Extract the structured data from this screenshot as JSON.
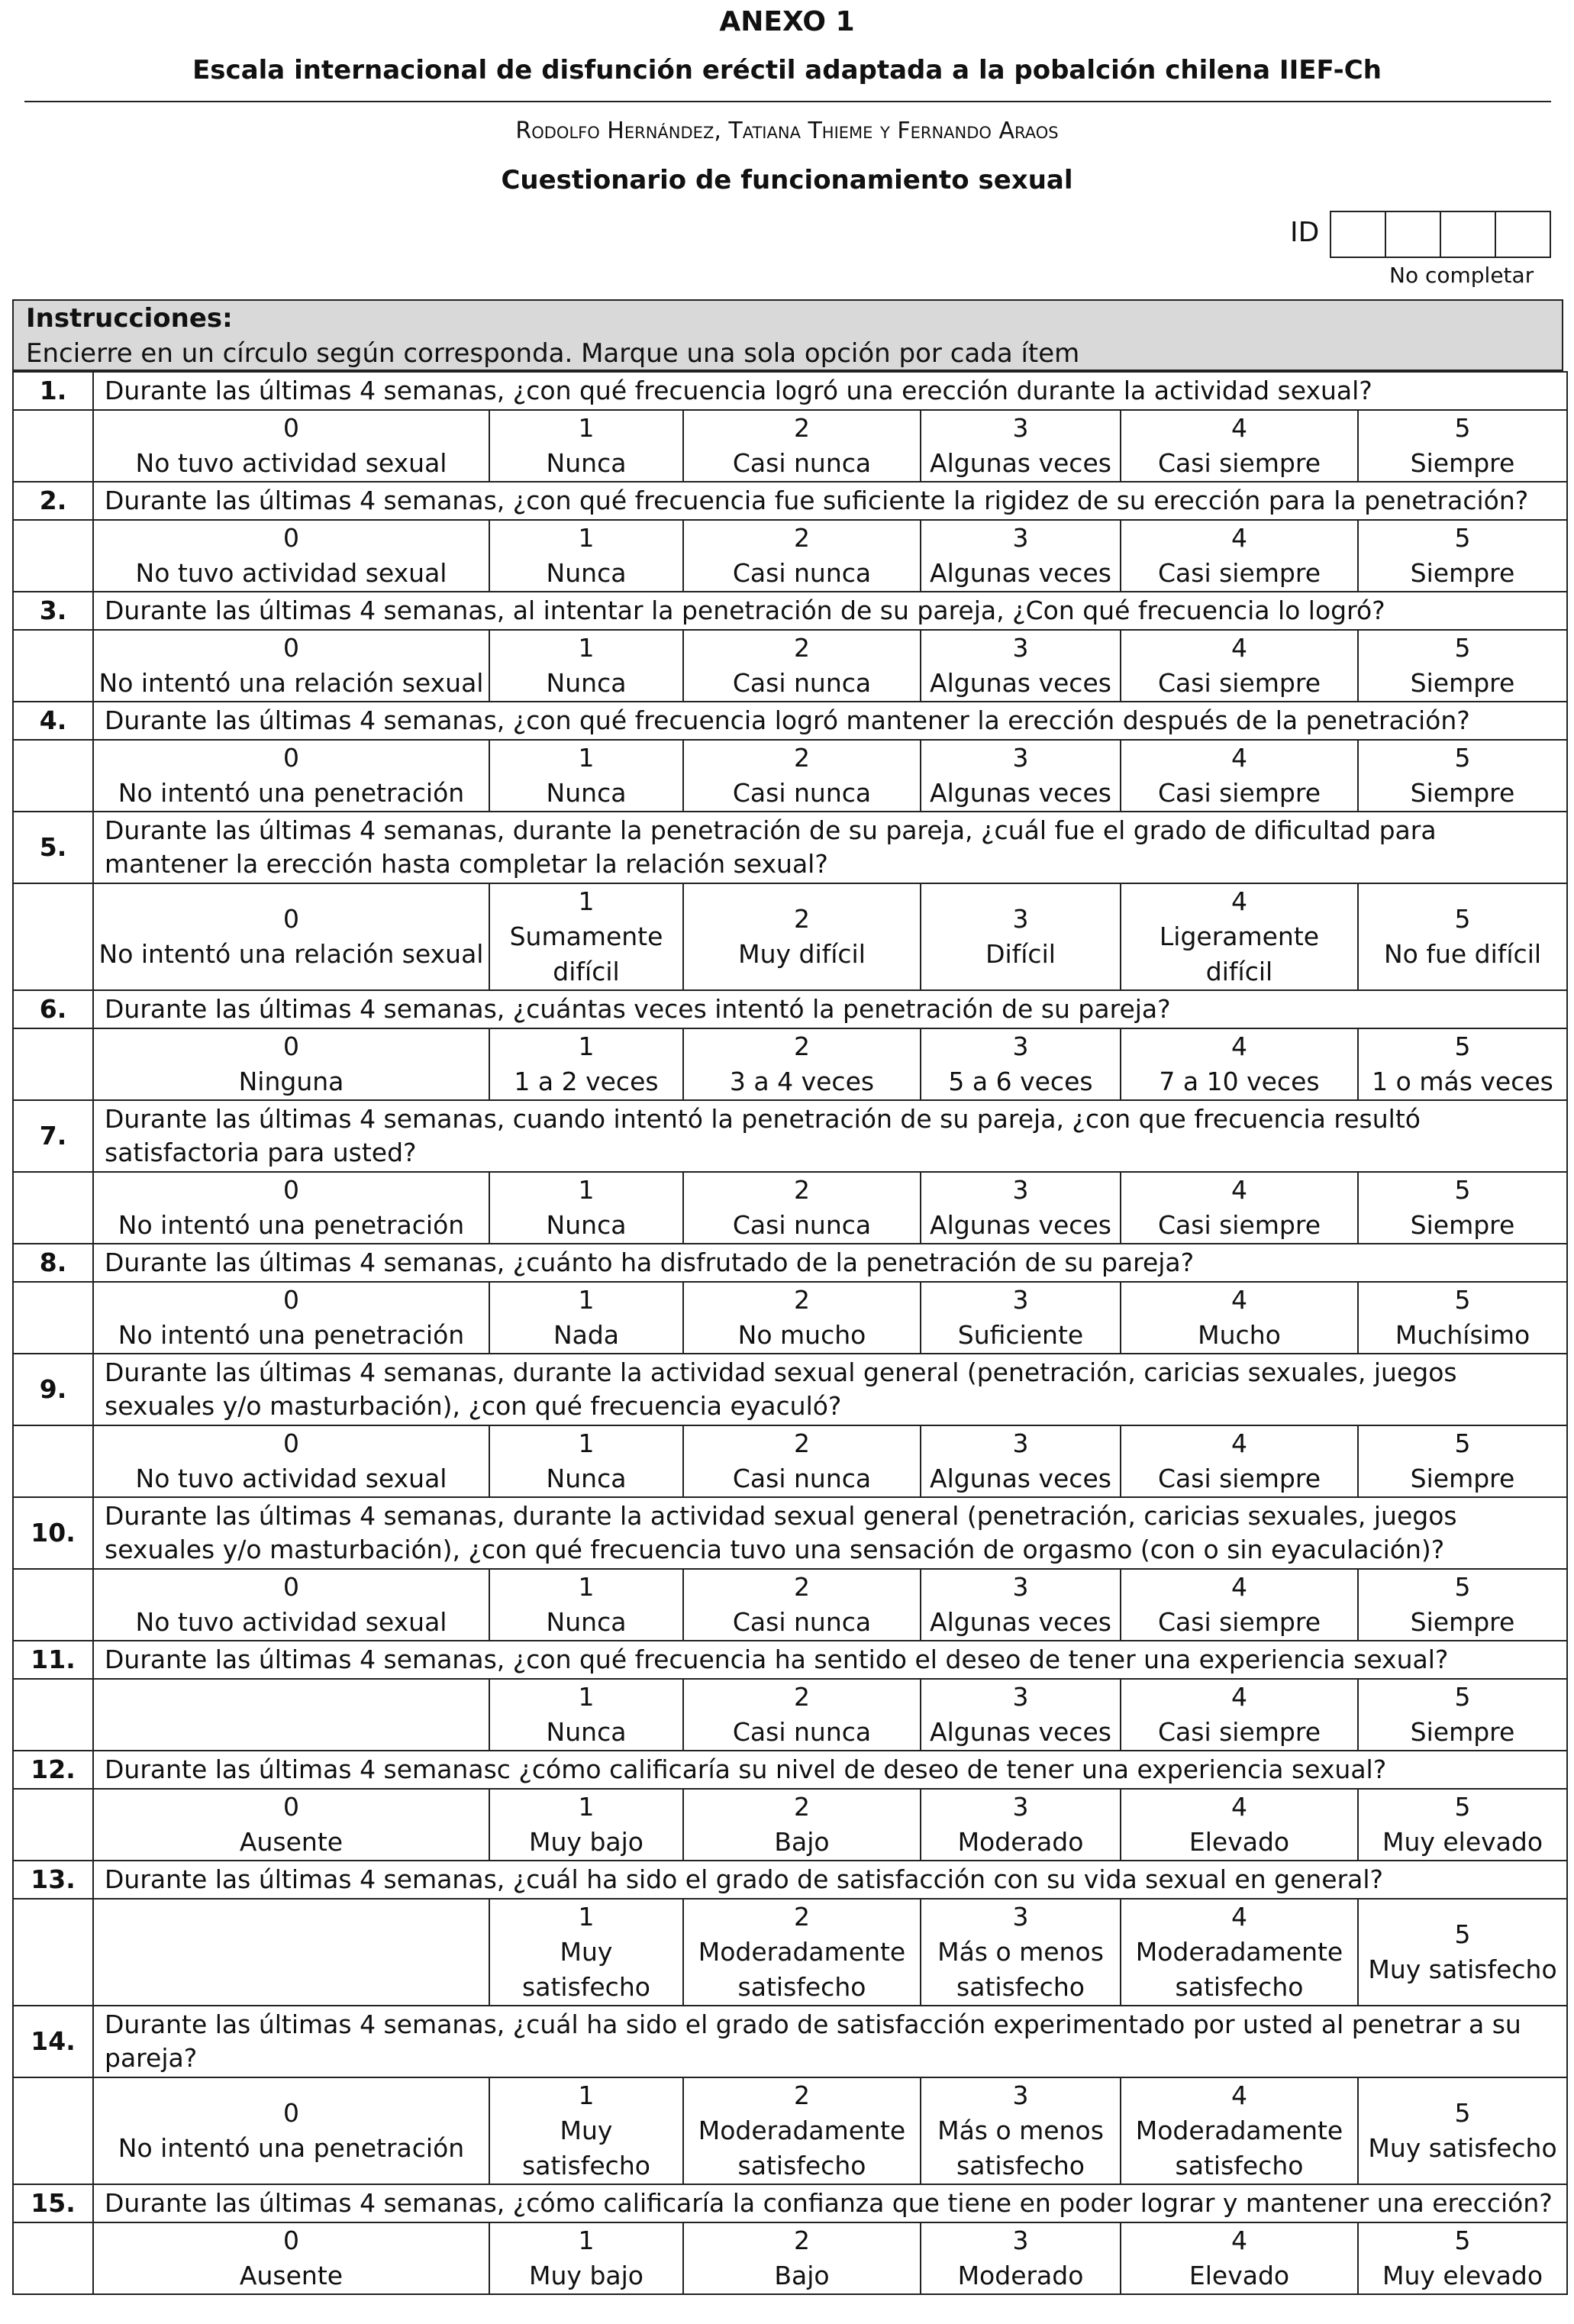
{
  "header": {
    "annex": "ANEXO 1",
    "title": "Escala internacional de disfunción eréctil adaptada a la pobalción chilena IIEF-Ch",
    "authors": "Rodolfo Hernández, Tatiana Thieme y Fernando Araos",
    "subtitle": "Cuestionario de funcionamiento sexual",
    "id_label": "ID",
    "id_note": "No completar"
  },
  "instructions": {
    "title": "Instrucciones:",
    "text": "Encierre en un círculo según corresponda. Marque una sola opción por cada ítem"
  },
  "items": [
    {
      "number": "1.",
      "question": "Durante las últimas 4 semanas, ¿con qué frecuencia logró una erección durante la actividad sexual?",
      "options": [
        {
          "value": 0,
          "label": "No tuvo actividad sexual"
        },
        {
          "value": 1,
          "label": "Nunca"
        },
        {
          "value": 2,
          "label": "Casi nunca"
        },
        {
          "value": 3,
          "label": "Algunas veces"
        },
        {
          "value": 4,
          "label": "Casi siempre"
        },
        {
          "value": 5,
          "label": "Siempre"
        }
      ]
    },
    {
      "number": "2.",
      "question": "Durante las últimas 4 semanas, ¿con qué frecuencia fue suficiente la rigidez de su erección para la penetración?",
      "options": [
        {
          "value": 0,
          "label": "No tuvo actividad sexual"
        },
        {
          "value": 1,
          "label": "Nunca"
        },
        {
          "value": 2,
          "label": "Casi nunca"
        },
        {
          "value": 3,
          "label": "Algunas veces"
        },
        {
          "value": 4,
          "label": "Casi siempre"
        },
        {
          "value": 5,
          "label": "Siempre"
        }
      ]
    },
    {
      "number": "3.",
      "question": "Durante las últimas 4 semanas, al intentar la penetración de su pareja, ¿Con qué frecuencia lo logró?",
      "options": [
        {
          "value": 0,
          "label": "No intentó una relación sexual"
        },
        {
          "value": 1,
          "label": "Nunca"
        },
        {
          "value": 2,
          "label": "Casi nunca"
        },
        {
          "value": 3,
          "label": "Algunas veces"
        },
        {
          "value": 4,
          "label": "Casi siempre"
        },
        {
          "value": 5,
          "label": "Siempre"
        }
      ]
    },
    {
      "number": "4.",
      "question": "Durante las últimas 4 semanas, ¿con qué frecuencia logró mantener la erección después de la penetración?",
      "options": [
        {
          "value": 0,
          "label": "No intentó una penetración"
        },
        {
          "value": 1,
          "label": "Nunca"
        },
        {
          "value": 2,
          "label": "Casi nunca"
        },
        {
          "value": 3,
          "label": "Algunas veces"
        },
        {
          "value": 4,
          "label": "Casi siempre"
        },
        {
          "value": 5,
          "label": "Siempre"
        }
      ]
    },
    {
      "number": "5.",
      "question": "Durante las últimas 4 semanas, durante la penetración de su pareja, ¿cuál fue el grado de dificultad para mantener la erección hasta completar la relación sexual?",
      "options": [
        {
          "value": 0,
          "label": "No intentó una relación sexual"
        },
        {
          "value": 1,
          "label": "Sumamente difícil"
        },
        {
          "value": 2,
          "label": "Muy difícil"
        },
        {
          "value": 3,
          "label": "Difícil"
        },
        {
          "value": 4,
          "label": "Ligeramente difícil"
        },
        {
          "value": 5,
          "label": "No fue difícil"
        }
      ]
    },
    {
      "number": "6.",
      "question": "Durante las últimas 4 semanas, ¿cuántas veces intentó la penetración de su pareja?",
      "options": [
        {
          "value": 0,
          "label": "Ninguna"
        },
        {
          "value": 1,
          "label": "1 a 2 veces"
        },
        {
          "value": 2,
          "label": "3 a 4 veces"
        },
        {
          "value": 3,
          "label": "5 a 6 veces"
        },
        {
          "value": 4,
          "label": "7 a 10 veces"
        },
        {
          "value": 5,
          "label": "1 o más veces"
        }
      ]
    },
    {
      "number": "7.",
      "question": "Durante las últimas 4 semanas, cuando intentó la penetración de su pareja, ¿con que frecuencia resultó satisfactoria para usted?",
      "options": [
        {
          "value": 0,
          "label": "No intentó una penetración"
        },
        {
          "value": 1,
          "label": "Nunca"
        },
        {
          "value": 2,
          "label": "Casi nunca"
        },
        {
          "value": 3,
          "label": "Algunas veces"
        },
        {
          "value": 4,
          "label": "Casi siempre"
        },
        {
          "value": 5,
          "label": "Siempre"
        }
      ]
    },
    {
      "number": "8.",
      "question": "Durante las últimas 4 semanas, ¿cuánto ha disfrutado de la penetración de su pareja?",
      "options": [
        {
          "value": 0,
          "label": "No intentó una penetración"
        },
        {
          "value": 1,
          "label": "Nada"
        },
        {
          "value": 2,
          "label": "No mucho"
        },
        {
          "value": 3,
          "label": "Suficiente"
        },
        {
          "value": 4,
          "label": "Mucho"
        },
        {
          "value": 5,
          "label": "Muchísimo"
        }
      ]
    },
    {
      "number": "9.",
      "question": "Durante las últimas 4 semanas, durante la actividad sexual general (penetración, caricias sexuales, juegos sexuales y/o masturbación), ¿con qué frecuencia eyaculó?",
      "options": [
        {
          "value": 0,
          "label": "No tuvo actividad sexual"
        },
        {
          "value": 1,
          "label": "Nunca"
        },
        {
          "value": 2,
          "label": "Casi nunca"
        },
        {
          "value": 3,
          "label": "Algunas veces"
        },
        {
          "value": 4,
          "label": "Casi siempre"
        },
        {
          "value": 5,
          "label": "Siempre"
        }
      ]
    },
    {
      "number": "10.",
      "question": "Durante las últimas 4 semanas, durante la actividad sexual general (penetración, caricias sexuales, juegos sexuales y/o masturbación), ¿con qué frecuencia tuvo una sensación de orgasmo (con o sin eyaculación)?",
      "options": [
        {
          "value": 0,
          "label": "No tuvo actividad sexual"
        },
        {
          "value": 1,
          "label": "Nunca"
        },
        {
          "value": 2,
          "label": "Casi nunca"
        },
        {
          "value": 3,
          "label": "Algunas veces"
        },
        {
          "value": 4,
          "label": "Casi siempre"
        },
        {
          "value": 5,
          "label": "Siempre"
        }
      ]
    },
    {
      "number": "11.",
      "question": "Durante las últimas 4 semanas, ¿con qué frecuencia ha sentido el deseo de tener una experiencia sexual?",
      "options": [
        {
          "value": 1,
          "label": "Nunca"
        },
        {
          "value": 2,
          "label": "Casi nunca"
        },
        {
          "value": 3,
          "label": "Algunas veces"
        },
        {
          "value": 4,
          "label": "Casi siempre"
        },
        {
          "value": 5,
          "label": "Siempre"
        }
      ]
    },
    {
      "number": "12.",
      "question": "Durante las últimas 4 semanasc ¿cómo calificaría su nivel de deseo de tener una experiencia sexual?",
      "options": [
        {
          "value": 0,
          "label": "Ausente"
        },
        {
          "value": 1,
          "label": "Muy bajo"
        },
        {
          "value": 2,
          "label": "Bajo"
        },
        {
          "value": 3,
          "label": "Moderado"
        },
        {
          "value": 4,
          "label": "Elevado"
        },
        {
          "value": 5,
          "label": "Muy elevado"
        }
      ]
    },
    {
      "number": "13.",
      "question": "Durante las últimas 4 semanas, ¿cuál ha sido el grado de satisfacción con su vida sexual en general?",
      "options": [
        {
          "value": 1,
          "label": "Muy satisfecho"
        },
        {
          "value": 2,
          "label": "Moderadamente satisfecho"
        },
        {
          "value": 3,
          "label": "Más o menos satisfecho"
        },
        {
          "value": 4,
          "label": "Moderadamente satisfecho"
        },
        {
          "value": 5,
          "label": "Muy satisfecho"
        }
      ]
    },
    {
      "number": "14.",
      "question": "Durante las últimas 4 semanas, ¿cuál ha sido el grado de satisfacción experimentado por usted al penetrar a su pareja?",
      "options": [
        {
          "value": 0,
          "label": "No intentó una penetración"
        },
        {
          "value": 1,
          "label": "Muy satisfecho"
        },
        {
          "value": 2,
          "label": "Moderadamente satisfecho"
        },
        {
          "value": 3,
          "label": "Más o menos satisfecho"
        },
        {
          "value": 4,
          "label": "Moderadamente satisfecho"
        },
        {
          "value": 5,
          "label": "Muy satisfecho"
        }
      ]
    },
    {
      "number": "15.",
      "question": "Durante las últimas 4 semanas, ¿cómo calificaría la confianza que tiene en poder lograr y mantener una erección?",
      "options": [
        {
          "value": 0,
          "label": "Ausente"
        },
        {
          "value": 1,
          "label": "Muy bajo"
        },
        {
          "value": 2,
          "label": "Bajo"
        },
        {
          "value": 3,
          "label": "Moderado"
        },
        {
          "value": 4,
          "label": "Elevado"
        },
        {
          "value": 5,
          "label": "Muy elevado"
        }
      ]
    }
  ]
}
